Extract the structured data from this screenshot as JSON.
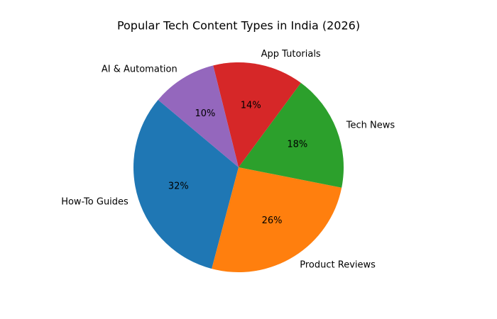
{
  "chart_data": {
    "type": "pie",
    "title": "Popular Tech Content Types in India (2026)",
    "categories": [
      "How-To Guides",
      "Product Reviews",
      "Tech News",
      "App Tutorials",
      "AI & Automation"
    ],
    "values": [
      32,
      26,
      18,
      14,
      10
    ],
    "value_labels": [
      "32%",
      "26%",
      "18%",
      "14%",
      "10%"
    ],
    "colors": [
      "#1f77b4",
      "#ff7f0e",
      "#2ca02c",
      "#d62728",
      "#9467bd"
    ]
  }
}
